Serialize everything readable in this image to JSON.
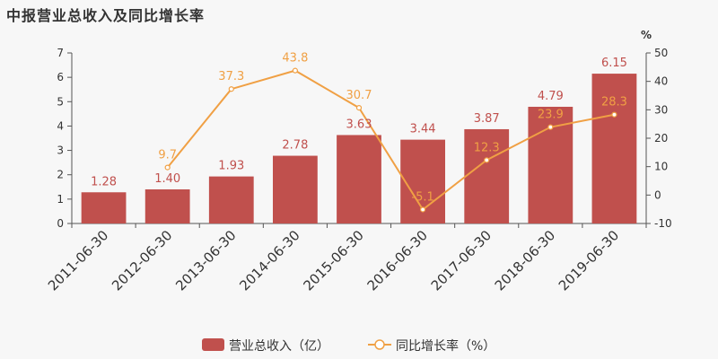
{
  "title": "中报营业总收入及同比增长率",
  "colors": {
    "bar": "#c0504d",
    "line": "#f0a044",
    "axis": "#555555",
    "text": "#333333"
  },
  "chart_data": {
    "type": "bar",
    "categories": [
      "2011-06-30",
      "2012-06-30",
      "2013-06-30",
      "2014-06-30",
      "2015-06-30",
      "2016-06-30",
      "2017-06-30",
      "2018-06-30",
      "2019-06-30"
    ],
    "series": [
      {
        "name": "营业总收入（亿）",
        "type": "bar",
        "axis": "left",
        "values": [
          1.28,
          1.4,
          1.93,
          2.78,
          3.63,
          3.44,
          3.87,
          4.79,
          6.15
        ],
        "labels": [
          "1.28",
          "1.40",
          "1.93",
          "2.78",
          "3.63",
          "3.44",
          "3.87",
          "4.79",
          "6.15"
        ]
      },
      {
        "name": "同比增长率（%）",
        "type": "line",
        "axis": "right",
        "values": [
          null,
          9.7,
          37.3,
          43.8,
          30.7,
          -5.1,
          12.3,
          23.9,
          28.3
        ],
        "labels": [
          "",
          "9.7",
          "37.3",
          "43.8",
          "30.7",
          "-5.1",
          "12.3",
          "23.9",
          "28.3"
        ]
      }
    ],
    "ylim_left": [
      0,
      7
    ],
    "yticks_left": [
      0,
      1,
      2,
      3,
      4,
      5,
      6,
      7
    ],
    "ylim_right": [
      -10,
      50
    ],
    "yticks_right": [
      -10,
      0,
      10,
      20,
      30,
      40,
      50
    ],
    "right_unit": "%",
    "legend": "bottom-center",
    "grid": false
  }
}
